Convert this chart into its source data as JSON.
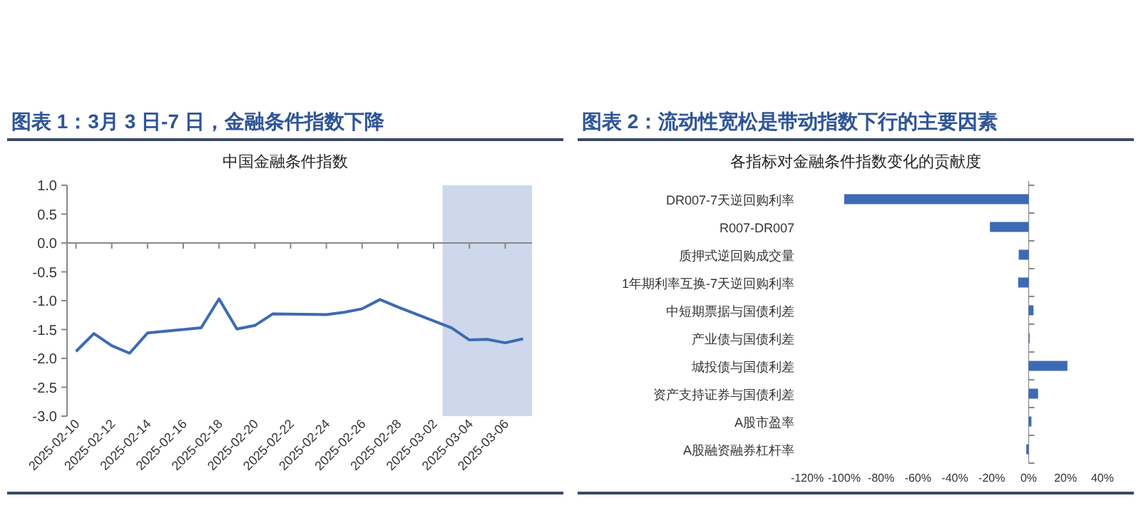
{
  "chart_data": [
    {
      "type": "line",
      "title": "图表 1：3月 3 日-7 日，金融条件指数下降",
      "subtitle": "中国金融条件指数",
      "x": [
        "2025-02-10",
        "2025-02-11",
        "2025-02-12",
        "2025-02-13",
        "2025-02-14",
        "2025-02-17",
        "2025-02-18",
        "2025-02-19",
        "2025-02-20",
        "2025-02-21",
        "2025-02-24",
        "2025-02-25",
        "2025-02-26",
        "2025-02-27",
        "2025-02-28",
        "2025-03-03",
        "2025-03-04",
        "2025-03-05",
        "2025-03-06",
        "2025-03-07"
      ],
      "series": [
        {
          "color": "#3d6bb3",
          "values": [
            -1.88,
            -1.57,
            -1.78,
            -1.91,
            -1.56,
            -1.47,
            -0.97,
            -1.49,
            -1.43,
            -1.23,
            -1.24,
            -1.2,
            -1.14,
            -0.98,
            -1.11,
            -1.47,
            -1.68,
            -1.67,
            -1.73,
            -1.66
          ]
        }
      ],
      "xlim": [
        "2025-02-09T12:00",
        "2025-03-07T12:00"
      ],
      "xticks": [
        "2025-02-10",
        "2025-02-12",
        "2025-02-14",
        "2025-02-16",
        "2025-02-18",
        "2025-02-20",
        "2025-02-22",
        "2025-02-24",
        "2025-02-26",
        "2025-02-28",
        "2025-03-02",
        "2025-03-04",
        "2025-03-06"
      ],
      "ylim": [
        -3,
        1
      ],
      "yticks": [
        {
          "value": 1,
          "label": "1.0"
        },
        {
          "value": 0.5,
          "label": "0.5"
        },
        {
          "value": 0,
          "label": "0.0"
        },
        {
          "value": -0.5,
          "label": "-0.5"
        },
        {
          "value": -1,
          "label": "-1.0"
        },
        {
          "value": -1.5,
          "label": "-1.5"
        },
        {
          "value": -2,
          "label": "-2.0"
        },
        {
          "value": -2.5,
          "label": "-2.5"
        },
        {
          "value": -3,
          "label": "-3.0"
        }
      ],
      "bands": [
        {
          "axis": "x",
          "from": "2025-03-02T12:00",
          "to": "2025-03-07T12:00",
          "color": "#cdd8ec"
        }
      ]
    },
    {
      "type": "bar",
      "orientation": "horizontal",
      "title": "图表 2：流动性宽松是带动指数下行的主要因素",
      "subtitle": "各指标对金融条件指数变化的贡献度",
      "categories": [
        "DR007-7天逆回购利率",
        "R007-DR007",
        "质押式逆回购成交量",
        "1年期利率互换-7天逆回购利率",
        "中短期票据与国债利差",
        "产业债与国债利差",
        "城投债与国债利差",
        "资产支持证券与国债利差",
        "A股市盈率",
        "A股融资融券杠杆率"
      ],
      "series": [
        {
          "color": "#3d6bb3",
          "values": [
            -100,
            -21,
            -5.4,
            -5.7,
            2.6,
            0.5,
            21,
            5.1,
            1.5,
            -1.3
          ]
        }
      ],
      "xlim": [
        -120,
        40
      ],
      "xticks": [
        {
          "value": -120,
          "label": "-120%"
        },
        {
          "value": -100,
          "label": "-100%"
        },
        {
          "value": -80,
          "label": "-80%"
        },
        {
          "value": -60,
          "label": "-60%"
        },
        {
          "value": -40,
          "label": "-40%"
        },
        {
          "value": -20,
          "label": "-20%"
        },
        {
          "value": 0,
          "label": "0%"
        },
        {
          "value": 20,
          "label": "20%"
        },
        {
          "value": 40,
          "label": "40%"
        }
      ]
    }
  ]
}
